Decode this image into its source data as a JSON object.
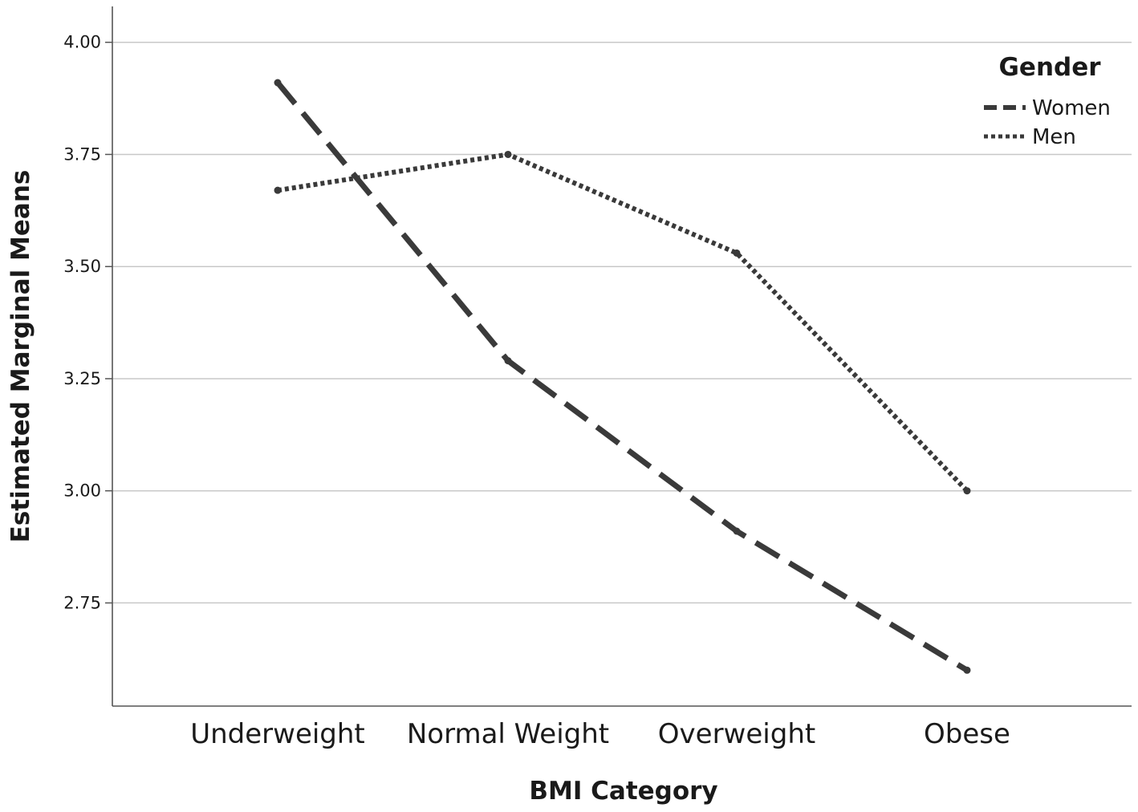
{
  "chart_data": {
    "type": "line",
    "title": "",
    "xlabel": "BMI Category",
    "ylabel": "Estimated Marginal Means",
    "categories": [
      "Underweight",
      "Normal Weight",
      "Overweight",
      "Obese"
    ],
    "ylim": [
      2.52,
      4.08
    ],
    "yticks": [
      2.75,
      3.0,
      3.25,
      3.5,
      3.75,
      4.0
    ],
    "ytick_labels": [
      "2.75",
      "3.00",
      "3.25",
      "3.50",
      "3.75",
      "4.00"
    ],
    "grid": true,
    "legend": {
      "title": "Gender",
      "position": "top-right"
    },
    "series": [
      {
        "name": "Women",
        "style": "dashed",
        "color": "#3a3a3a",
        "values": [
          3.91,
          3.29,
          2.91,
          2.6
        ]
      },
      {
        "name": "Men",
        "style": "dotted",
        "color": "#3a3a3a",
        "values": [
          3.67,
          3.75,
          3.53,
          3.0
        ]
      }
    ],
    "colors": {
      "grid": "#c8c8c8",
      "axis": "#555555"
    }
  }
}
